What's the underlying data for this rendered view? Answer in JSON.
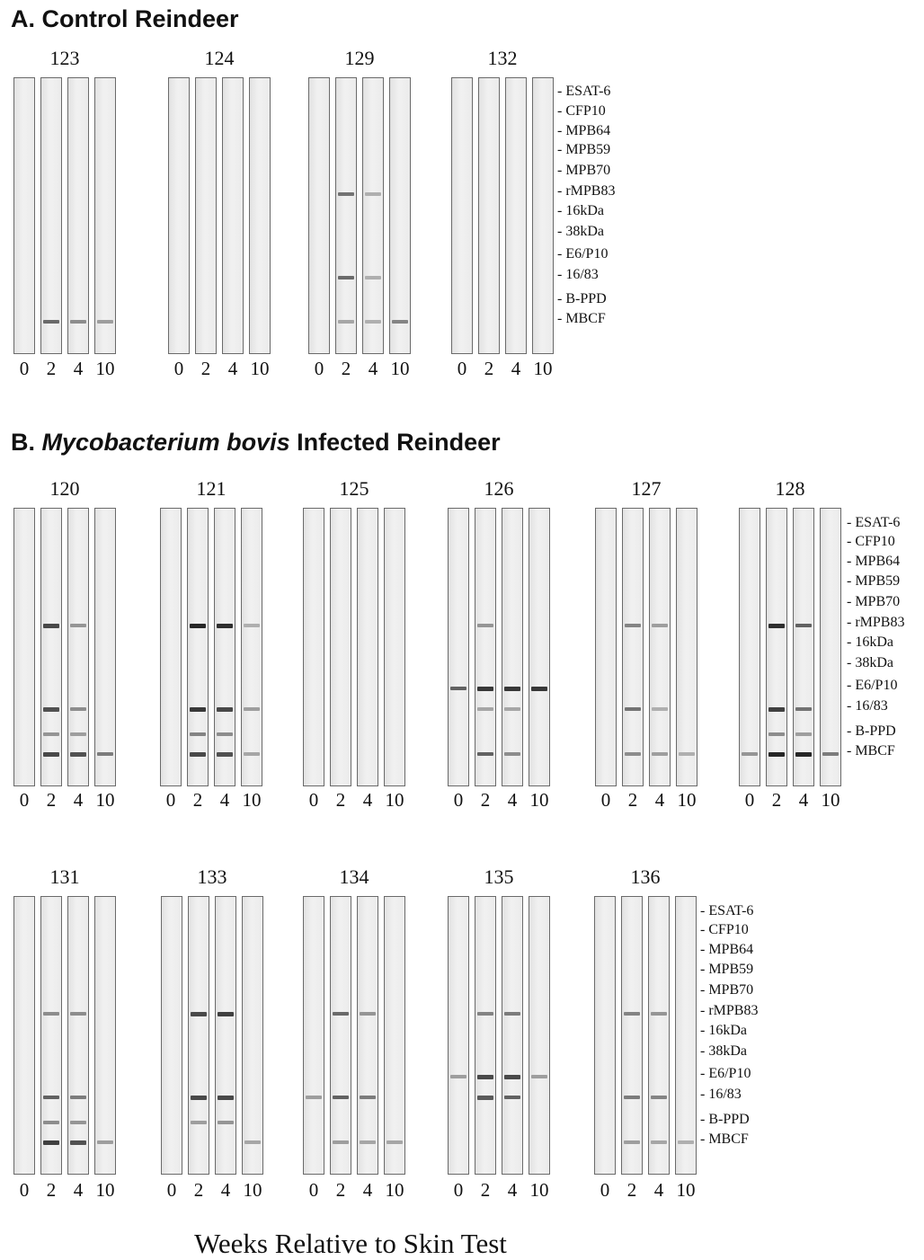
{
  "sectionA": {
    "title": "A. Control Reindeer"
  },
  "sectionB": {
    "title_prefix": "B.",
    "title_italic": "Mycobacterium bovis",
    "title_suffix": "Infected Reindeer"
  },
  "antigens": [
    "ESAT-6",
    "CFP10",
    "MPB64",
    "MPB59",
    "MPB70",
    "rMPB83",
    "16kDa",
    "38kDa",
    "E6/P10",
    "16/83",
    "B-PPD",
    "MBCF"
  ],
  "weeks": [
    "0",
    "2",
    "4",
    "10"
  ],
  "x_axis_label": "Weeks Relative to Skin Test",
  "band_scale": "band intensity 0-1 estimated from strip darkness",
  "panels": [
    {
      "section": "A",
      "animal": "123",
      "strips": [
        {
          "week": "0",
          "bands": []
        },
        {
          "week": "2",
          "bands": [
            {
              "antigen": "MBCF",
              "intensity": 0.55
            }
          ]
        },
        {
          "week": "4",
          "bands": [
            {
              "antigen": "MBCF",
              "intensity": 0.35
            }
          ]
        },
        {
          "week": "10",
          "bands": [
            {
              "antigen": "MBCF",
              "intensity": 0.25
            }
          ]
        }
      ]
    },
    {
      "section": "A",
      "animal": "124",
      "strips": [
        {
          "week": "0",
          "bands": []
        },
        {
          "week": "2",
          "bands": []
        },
        {
          "week": "4",
          "bands": []
        },
        {
          "week": "10",
          "bands": []
        }
      ]
    },
    {
      "section": "A",
      "animal": "129",
      "strips": [
        {
          "week": "0",
          "bands": []
        },
        {
          "week": "2",
          "bands": [
            {
              "antigen": "rMPB83",
              "intensity": 0.5
            },
            {
              "antigen": "16/83",
              "intensity": 0.55
            },
            {
              "antigen": "MBCF",
              "intensity": 0.2
            }
          ]
        },
        {
          "week": "4",
          "bands": [
            {
              "antigen": "rMPB83",
              "intensity": 0.15
            },
            {
              "antigen": "16/83",
              "intensity": 0.15
            },
            {
              "antigen": "MBCF",
              "intensity": 0.15
            }
          ]
        },
        {
          "week": "10",
          "bands": [
            {
              "antigen": "MBCF",
              "intensity": 0.4
            }
          ]
        }
      ]
    },
    {
      "section": "A",
      "animal": "132",
      "strips": [
        {
          "week": "0",
          "bands": []
        },
        {
          "week": "2",
          "bands": []
        },
        {
          "week": "4",
          "bands": []
        },
        {
          "week": "10",
          "bands": []
        }
      ]
    },
    {
      "section": "B",
      "animal": "120",
      "strips": [
        {
          "week": "0",
          "bands": []
        },
        {
          "week": "2",
          "bands": [
            {
              "antigen": "rMPB83",
              "intensity": 0.75
            },
            {
              "antigen": "16/83",
              "intensity": 0.7
            },
            {
              "antigen": "B-PPD",
              "intensity": 0.3
            },
            {
              "antigen": "MBCF",
              "intensity": 0.75
            }
          ]
        },
        {
          "week": "4",
          "bands": [
            {
              "antigen": "rMPB83",
              "intensity": 0.3
            },
            {
              "antigen": "16/83",
              "intensity": 0.35
            },
            {
              "antigen": "B-PPD",
              "intensity": 0.25
            },
            {
              "antigen": "MBCF",
              "intensity": 0.7
            }
          ]
        },
        {
          "week": "10",
          "bands": [
            {
              "antigen": "MBCF",
              "intensity": 0.45
            }
          ]
        }
      ]
    },
    {
      "section": "B",
      "animal": "121",
      "strips": [
        {
          "week": "0",
          "bands": []
        },
        {
          "week": "2",
          "bands": [
            {
              "antigen": "rMPB83",
              "intensity": 0.95
            },
            {
              "antigen": "16/83",
              "intensity": 0.85
            },
            {
              "antigen": "B-PPD",
              "intensity": 0.4
            },
            {
              "antigen": "MBCF",
              "intensity": 0.75
            }
          ]
        },
        {
          "week": "4",
          "bands": [
            {
              "antigen": "rMPB83",
              "intensity": 0.9
            },
            {
              "antigen": "16/83",
              "intensity": 0.75
            },
            {
              "antigen": "B-PPD",
              "intensity": 0.35
            },
            {
              "antigen": "MBCF",
              "intensity": 0.7
            }
          ]
        },
        {
          "week": "10",
          "bands": [
            {
              "antigen": "rMPB83",
              "intensity": 0.15
            },
            {
              "antigen": "16/83",
              "intensity": 0.25
            },
            {
              "antigen": "MBCF",
              "intensity": 0.2
            }
          ]
        }
      ]
    },
    {
      "section": "B",
      "animal": "125",
      "strips": [
        {
          "week": "0",
          "bands": []
        },
        {
          "week": "2",
          "bands": []
        },
        {
          "week": "4",
          "bands": []
        },
        {
          "week": "10",
          "bands": []
        }
      ]
    },
    {
      "section": "B",
      "animal": "126",
      "strips": [
        {
          "week": "0",
          "bands": [
            {
              "antigen": "E6/P10",
              "intensity": 0.6
            }
          ]
        },
        {
          "week": "2",
          "bands": [
            {
              "antigen": "rMPB83",
              "intensity": 0.3
            },
            {
              "antigen": "E6/P10",
              "intensity": 0.85
            },
            {
              "antigen": "16/83",
              "intensity": 0.2
            },
            {
              "antigen": "MBCF",
              "intensity": 0.6
            }
          ]
        },
        {
          "week": "4",
          "bands": [
            {
              "antigen": "E6/P10",
              "intensity": 0.85
            },
            {
              "antigen": "16/83",
              "intensity": 0.2
            },
            {
              "antigen": "MBCF",
              "intensity": 0.35
            }
          ]
        },
        {
          "week": "10",
          "bands": [
            {
              "antigen": "E6/P10",
              "intensity": 0.85
            }
          ]
        }
      ]
    },
    {
      "section": "B",
      "animal": "127",
      "strips": [
        {
          "week": "0",
          "bands": []
        },
        {
          "week": "2",
          "bands": [
            {
              "antigen": "rMPB83",
              "intensity": 0.4
            },
            {
              "antigen": "16/83",
              "intensity": 0.5
            },
            {
              "antigen": "MBCF",
              "intensity": 0.35
            }
          ]
        },
        {
          "week": "4",
          "bands": [
            {
              "antigen": "rMPB83",
              "intensity": 0.25
            },
            {
              "antigen": "16/83",
              "intensity": 0.15
            },
            {
              "antigen": "MBCF",
              "intensity": 0.25
            }
          ]
        },
        {
          "week": "10",
          "bands": [
            {
              "antigen": "MBCF",
              "intensity": 0.15
            }
          ]
        }
      ]
    },
    {
      "section": "B",
      "animal": "128",
      "strips": [
        {
          "week": "0",
          "bands": [
            {
              "antigen": "MBCF",
              "intensity": 0.3
            }
          ]
        },
        {
          "week": "2",
          "bands": [
            {
              "antigen": "rMPB83",
              "intensity": 0.9
            },
            {
              "antigen": "16/83",
              "intensity": 0.8
            },
            {
              "antigen": "B-PPD",
              "intensity": 0.35
            },
            {
              "antigen": "MBCF",
              "intensity": 0.95
            }
          ]
        },
        {
          "week": "4",
          "bands": [
            {
              "antigen": "rMPB83",
              "intensity": 0.6
            },
            {
              "antigen": "16/83",
              "intensity": 0.5
            },
            {
              "antigen": "B-PPD",
              "intensity": 0.25
            },
            {
              "antigen": "MBCF",
              "intensity": 0.95
            }
          ]
        },
        {
          "week": "10",
          "bands": [
            {
              "antigen": "MBCF",
              "intensity": 0.45
            }
          ]
        }
      ]
    },
    {
      "section": "B",
      "animal": "131",
      "strips": [
        {
          "week": "0",
          "bands": []
        },
        {
          "week": "2",
          "bands": [
            {
              "antigen": "rMPB83",
              "intensity": 0.35
            },
            {
              "antigen": "16/83",
              "intensity": 0.6
            },
            {
              "antigen": "B-PPD",
              "intensity": 0.35
            },
            {
              "antigen": "MBCF",
              "intensity": 0.8
            }
          ]
        },
        {
          "week": "4",
          "bands": [
            {
              "antigen": "rMPB83",
              "intensity": 0.35
            },
            {
              "antigen": "16/83",
              "intensity": 0.45
            },
            {
              "antigen": "B-PPD",
              "intensity": 0.3
            },
            {
              "antigen": "MBCF",
              "intensity": 0.7
            }
          ]
        },
        {
          "week": "10",
          "bands": [
            {
              "antigen": "MBCF",
              "intensity": 0.25
            }
          ]
        }
      ]
    },
    {
      "section": "B",
      "animal": "133",
      "strips": [
        {
          "week": "0",
          "bands": []
        },
        {
          "week": "2",
          "bands": [
            {
              "antigen": "rMPB83",
              "intensity": 0.75
            },
            {
              "antigen": "16/83",
              "intensity": 0.75
            },
            {
              "antigen": "B-PPD",
              "intensity": 0.25
            }
          ]
        },
        {
          "week": "4",
          "bands": [
            {
              "antigen": "rMPB83",
              "intensity": 0.8
            },
            {
              "antigen": "16/83",
              "intensity": 0.75
            },
            {
              "antigen": "B-PPD",
              "intensity": 0.3
            }
          ]
        },
        {
          "week": "10",
          "bands": [
            {
              "antigen": "MBCF",
              "intensity": 0.2
            }
          ]
        }
      ]
    },
    {
      "section": "B",
      "animal": "134",
      "strips": [
        {
          "week": "0",
          "bands": [
            {
              "antigen": "16/83",
              "intensity": 0.25
            }
          ]
        },
        {
          "week": "2",
          "bands": [
            {
              "antigen": "rMPB83",
              "intensity": 0.55
            },
            {
              "antigen": "16/83",
              "intensity": 0.6
            },
            {
              "antigen": "MBCF",
              "intensity": 0.25
            }
          ]
        },
        {
          "week": "4",
          "bands": [
            {
              "antigen": "rMPB83",
              "intensity": 0.3
            },
            {
              "antigen": "16/83",
              "intensity": 0.45
            },
            {
              "antigen": "MBCF",
              "intensity": 0.2
            }
          ]
        },
        {
          "week": "10",
          "bands": [
            {
              "antigen": "MBCF",
              "intensity": 0.2
            }
          ]
        }
      ]
    },
    {
      "section": "B",
      "animal": "135",
      "strips": [
        {
          "week": "0",
          "bands": [
            {
              "antigen": "E6/P10",
              "intensity": 0.25
            }
          ]
        },
        {
          "week": "2",
          "bands": [
            {
              "antigen": "rMPB83",
              "intensity": 0.4
            },
            {
              "antigen": "E6/P10",
              "intensity": 0.75
            },
            {
              "antigen": "16/83",
              "intensity": 0.65
            }
          ]
        },
        {
          "week": "4",
          "bands": [
            {
              "antigen": "rMPB83",
              "intensity": 0.45
            },
            {
              "antigen": "E6/P10",
              "intensity": 0.75
            },
            {
              "antigen": "16/83",
              "intensity": 0.6
            }
          ]
        },
        {
          "week": "10",
          "bands": [
            {
              "antigen": "E6/P10",
              "intensity": 0.25
            }
          ]
        }
      ]
    },
    {
      "section": "B",
      "animal": "136",
      "strips": [
        {
          "week": "0",
          "bands": []
        },
        {
          "week": "2",
          "bands": [
            {
              "antigen": "rMPB83",
              "intensity": 0.4
            },
            {
              "antigen": "16/83",
              "intensity": 0.45
            },
            {
              "antigen": "MBCF",
              "intensity": 0.25
            }
          ]
        },
        {
          "week": "4",
          "bands": [
            {
              "antigen": "rMPB83",
              "intensity": 0.3
            },
            {
              "antigen": "16/83",
              "intensity": 0.4
            },
            {
              "antigen": "MBCF",
              "intensity": 0.2
            }
          ]
        },
        {
          "week": "10",
          "bands": [
            {
              "antigen": "MBCF",
              "intensity": 0.15
            }
          ]
        }
      ]
    }
  ]
}
